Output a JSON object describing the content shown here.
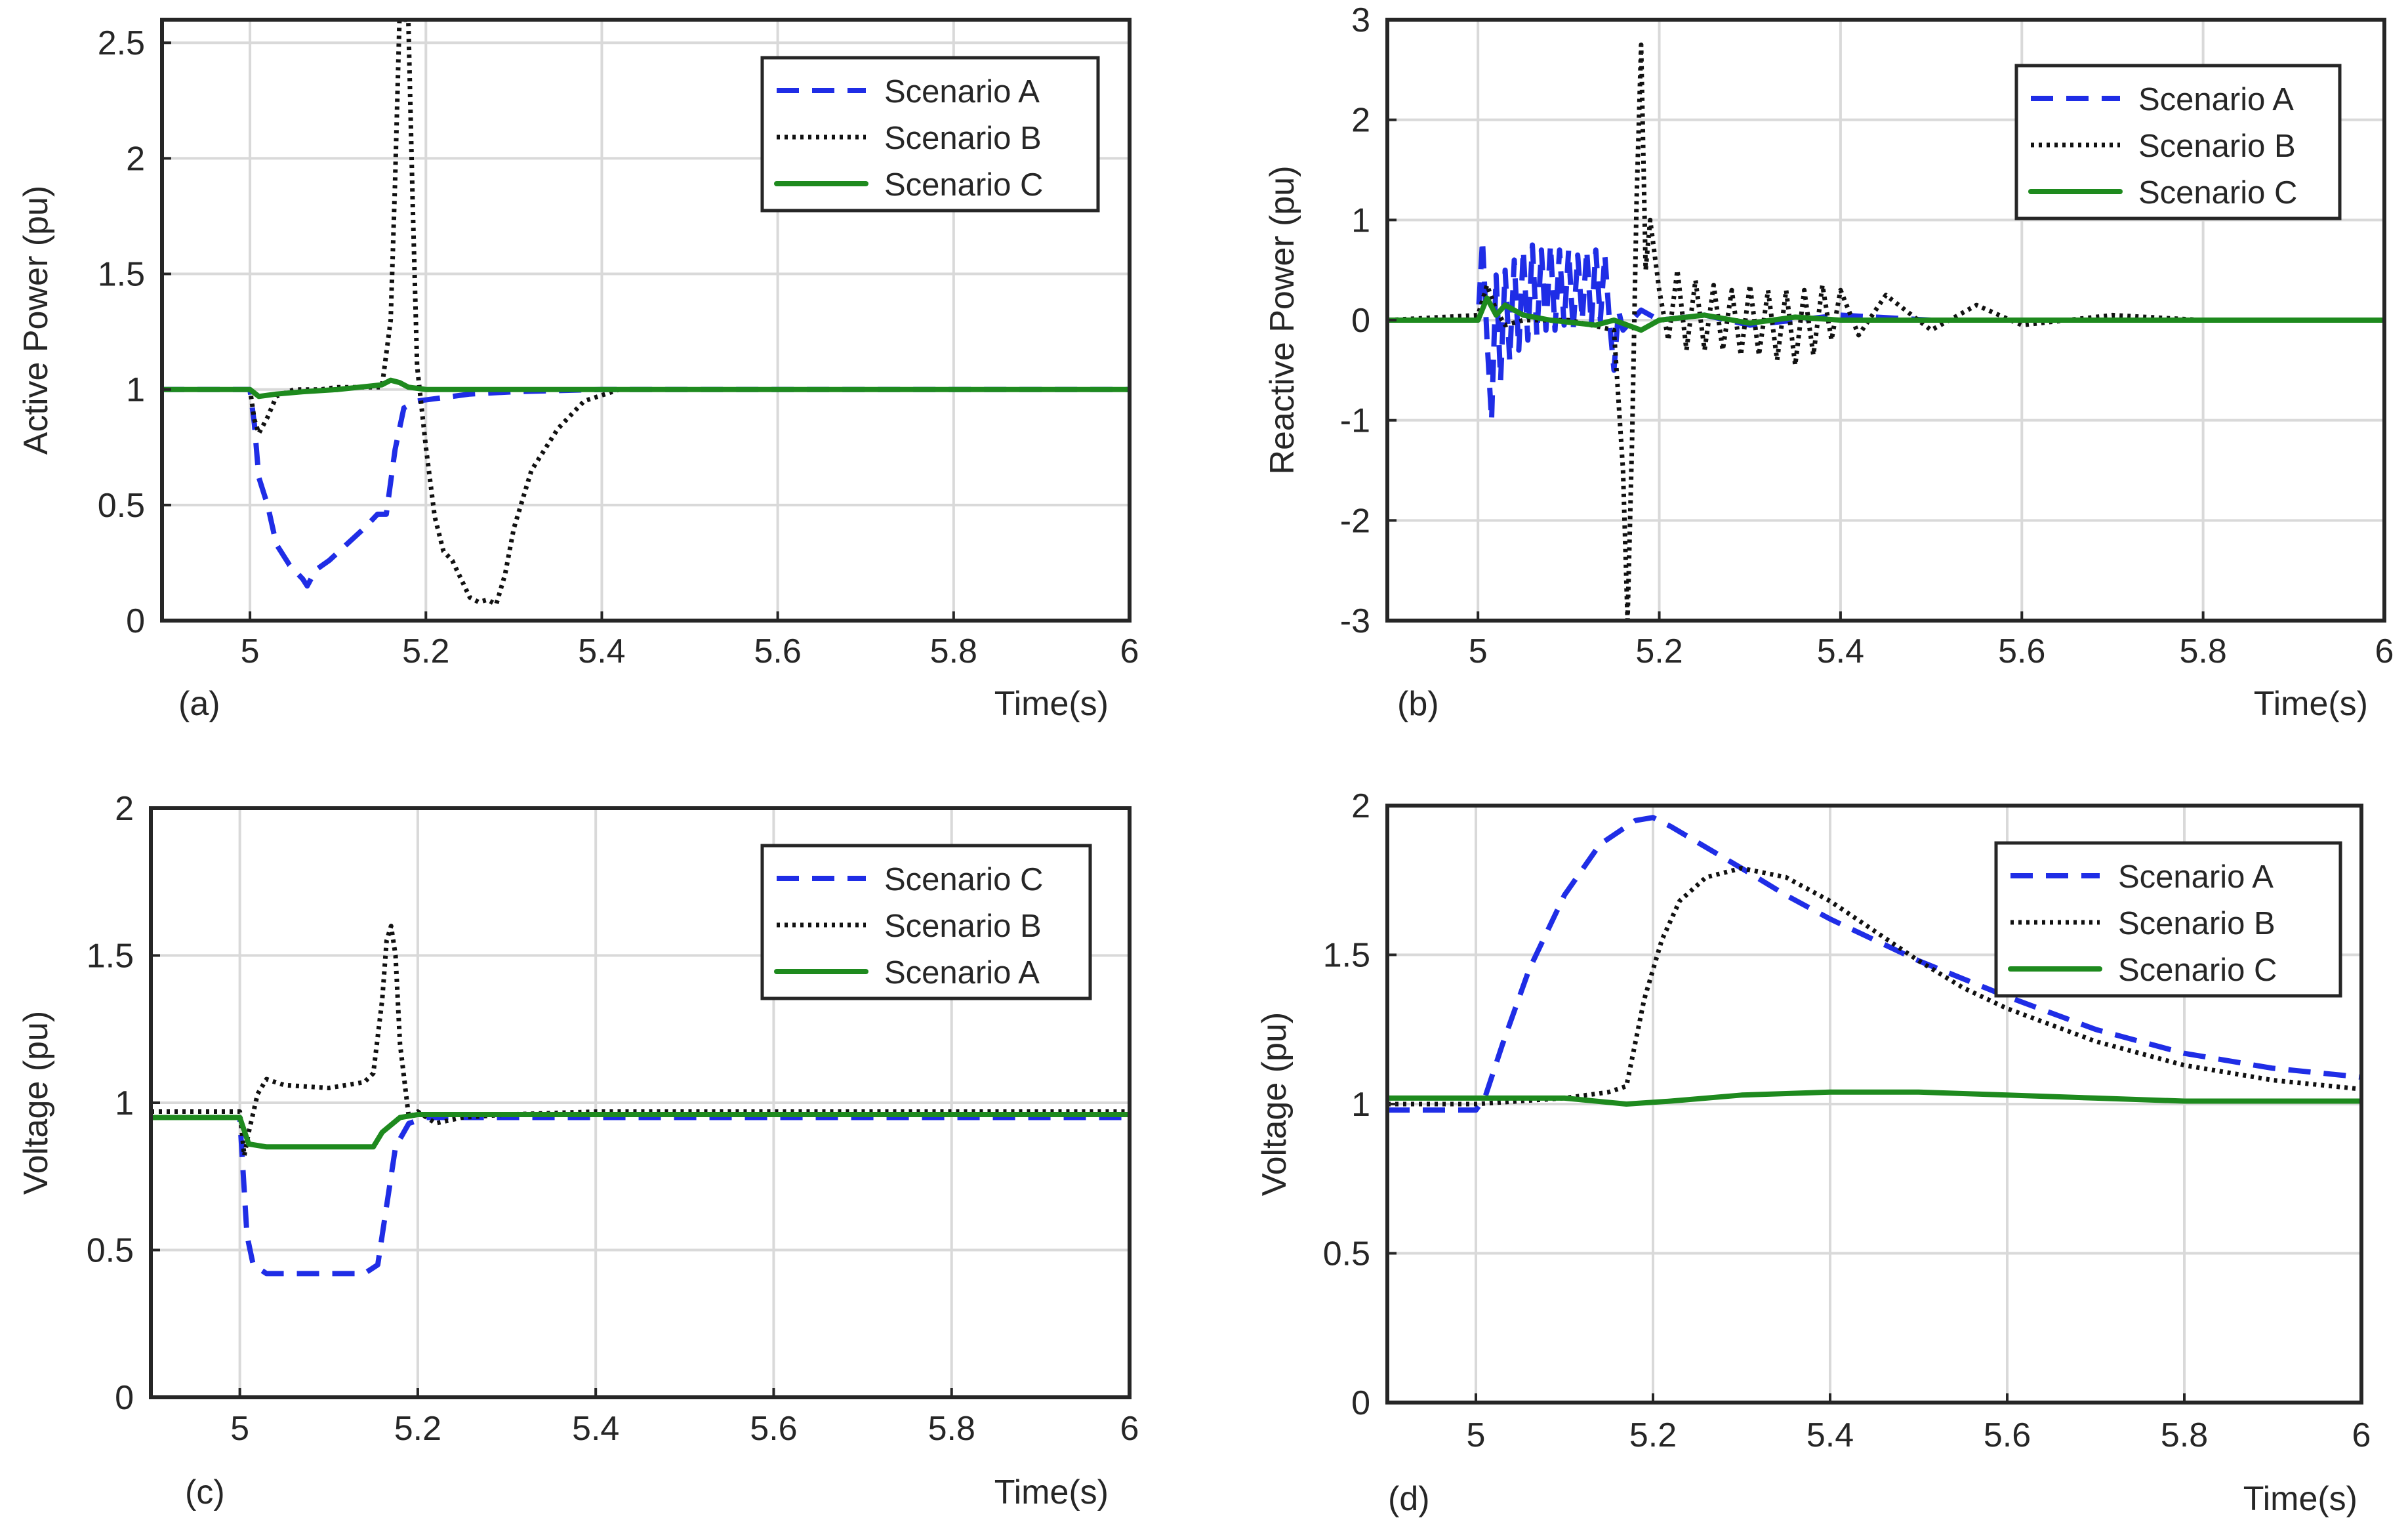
{
  "colors": {
    "scenario_dashed": "#1f2de6",
    "scenario_dotted": "#111111",
    "scenario_solid": "#1e8a1e",
    "grid": "#d9d9d9",
    "axes": "#262626"
  },
  "chart_data": [
    {
      "id": "a",
      "type": "line",
      "panel_label": "(a)",
      "xlabel": "Time(s)",
      "ylabel": "Active Power (pu)",
      "xlim": [
        4.9,
        6.0
      ],
      "ylim": [
        0,
        2.6
      ],
      "xticks": [
        5,
        5.2,
        5.4,
        5.6,
        5.8,
        6
      ],
      "yticks": [
        0,
        0.5,
        1,
        1.5,
        2,
        2.5
      ],
      "ytick_labels": [
        "0",
        "0.5",
        "1",
        "1.5",
        "2",
        "2.5"
      ],
      "xtick_labels": [
        "5",
        "5.2",
        "5.4",
        "5.6",
        "5.8",
        "6"
      ],
      "grid": true,
      "legend_position": "top-right",
      "series": [
        {
          "name": "Scenario A",
          "style": "dashed",
          "color": "#1f2de6",
          "x": [
            4.9,
            5.0,
            5.005,
            5.01,
            5.02,
            5.03,
            5.045,
            5.06,
            5.065,
            5.075,
            5.09,
            5.11,
            5.13,
            5.145,
            5.155,
            5.165,
            5.175,
            5.19,
            5.21,
            5.25,
            5.3,
            5.4,
            6.0
          ],
          "y": [
            1.0,
            1.0,
            0.85,
            0.62,
            0.5,
            0.33,
            0.24,
            0.18,
            0.15,
            0.22,
            0.26,
            0.33,
            0.4,
            0.46,
            0.46,
            0.74,
            0.92,
            0.95,
            0.96,
            0.98,
            0.99,
            1.0,
            1.0
          ]
        },
        {
          "name": "Scenario B",
          "style": "dotted",
          "color": "#111111",
          "x": [
            4.9,
            5.0,
            5.005,
            5.01,
            5.02,
            5.03,
            5.05,
            5.08,
            5.1,
            5.13,
            5.15,
            5.16,
            5.165,
            5.17,
            5.175,
            5.18,
            5.185,
            5.19,
            5.2,
            5.21,
            5.22,
            5.23,
            5.24,
            5.25,
            5.26,
            5.27,
            5.28,
            5.29,
            5.3,
            5.32,
            5.35,
            5.38,
            5.42,
            5.5,
            6.0
          ],
          "y": [
            1.0,
            1.0,
            0.87,
            0.81,
            0.88,
            0.97,
            1.0,
            1.0,
            1.01,
            1.01,
            1.01,
            1.3,
            1.9,
            2.6,
            2.6,
            2.6,
            1.8,
            1.1,
            0.75,
            0.45,
            0.3,
            0.26,
            0.18,
            0.1,
            0.08,
            0.09,
            0.07,
            0.2,
            0.4,
            0.65,
            0.83,
            0.95,
            1.0,
            1.0,
            1.0
          ]
        },
        {
          "name": "Scenario C",
          "style": "solid",
          "color": "#1e8a1e",
          "x": [
            4.9,
            5.0,
            5.01,
            5.03,
            5.06,
            5.1,
            5.15,
            5.16,
            5.17,
            5.18,
            5.2,
            5.3,
            6.0
          ],
          "y": [
            1.0,
            1.0,
            0.97,
            0.98,
            0.99,
            1.0,
            1.02,
            1.04,
            1.03,
            1.01,
            1.0,
            1.0,
            1.0
          ]
        }
      ]
    },
    {
      "id": "b",
      "type": "line",
      "panel_label": "(b)",
      "xlabel": "Time(s)",
      "ylabel": "Reactive Power (pu)",
      "xlim": [
        4.9,
        6.0
      ],
      "ylim": [
        -3,
        3
      ],
      "xticks": [
        5,
        5.2,
        5.4,
        5.6,
        5.8,
        6
      ],
      "yticks": [
        -3,
        -2,
        -1,
        0,
        1,
        2,
        3
      ],
      "ytick_labels": [
        "-3",
        "-2",
        "-1",
        "0",
        "1",
        "2",
        "3"
      ],
      "xtick_labels": [
        "5",
        "5.2",
        "5.4",
        "5.6",
        "5.8",
        "6"
      ],
      "grid": true,
      "legend_position": "top-right",
      "series": [
        {
          "name": "Scenario A",
          "style": "dashed",
          "color": "#1f2de6",
          "x": [
            4.9,
            5.0,
            5.005,
            5.01,
            5.015,
            5.02,
            5.025,
            5.03,
            5.035,
            5.04,
            5.045,
            5.05,
            5.055,
            5.06,
            5.065,
            5.07,
            5.075,
            5.08,
            5.085,
            5.09,
            5.095,
            5.1,
            5.105,
            5.11,
            5.115,
            5.12,
            5.125,
            5.13,
            5.135,
            5.14,
            5.145,
            5.15,
            5.155,
            5.16,
            5.18,
            5.2,
            5.25,
            5.3,
            5.4,
            5.5,
            6.0
          ],
          "y": [
            0.0,
            0.0,
            0.8,
            -0.2,
            -1.0,
            0.45,
            -0.6,
            0.5,
            -0.4,
            0.6,
            -0.3,
            0.7,
            -0.2,
            0.75,
            -0.15,
            0.7,
            -0.1,
            0.75,
            -0.1,
            0.7,
            -0.05,
            0.7,
            -0.1,
            0.65,
            0.0,
            0.7,
            -0.05,
            0.7,
            0.0,
            0.65,
            0.0,
            -0.5,
            0.1,
            -0.1,
            0.1,
            0.0,
            0.05,
            -0.05,
            0.05,
            0.0,
            0.0
          ]
        },
        {
          "name": "Scenario B",
          "style": "dotted",
          "color": "#111111",
          "x": [
            4.9,
            5.0,
            5.01,
            5.02,
            5.03,
            5.05,
            5.1,
            5.15,
            5.16,
            5.165,
            5.17,
            5.175,
            5.18,
            5.185,
            5.19,
            5.2,
            5.21,
            5.22,
            5.23,
            5.24,
            5.25,
            5.26,
            5.27,
            5.28,
            5.29,
            5.3,
            5.31,
            5.32,
            5.33,
            5.34,
            5.35,
            5.36,
            5.37,
            5.38,
            5.39,
            5.4,
            5.42,
            5.45,
            5.5,
            5.55,
            5.6,
            5.7,
            5.8,
            6.0
          ],
          "y": [
            0.0,
            0.05,
            0.35,
            0.1,
            -0.05,
            0.0,
            0.0,
            -0.1,
            -1.5,
            -3.0,
            -1.2,
            1.2,
            2.75,
            0.5,
            1.0,
            0.3,
            -0.2,
            0.5,
            -0.3,
            0.4,
            -0.3,
            0.35,
            -0.3,
            0.3,
            -0.35,
            0.35,
            -0.35,
            0.3,
            -0.4,
            0.3,
            -0.45,
            0.3,
            -0.35,
            0.35,
            -0.2,
            0.3,
            -0.15,
            0.25,
            -0.1,
            0.15,
            -0.05,
            0.05,
            0.0,
            0.0
          ]
        },
        {
          "name": "Scenario C",
          "style": "solid",
          "color": "#1e8a1e",
          "x": [
            4.9,
            5.0,
            5.01,
            5.02,
            5.03,
            5.05,
            5.08,
            5.1,
            5.13,
            5.15,
            5.18,
            5.2,
            5.25,
            5.3,
            5.35,
            5.4,
            5.5,
            6.0
          ],
          "y": [
            0.0,
            0.0,
            0.22,
            0.05,
            0.15,
            0.05,
            0.0,
            -0.02,
            -0.05,
            0.0,
            -0.1,
            0.0,
            0.05,
            -0.03,
            0.03,
            0.0,
            0.0,
            0.0
          ]
        }
      ]
    },
    {
      "id": "c",
      "type": "line",
      "panel_label": "(c)",
      "xlabel": "Time(s)",
      "ylabel": "Voltage (pu)",
      "xlim": [
        4.9,
        6.0
      ],
      "ylim": [
        0,
        2
      ],
      "xticks": [
        5,
        5.2,
        5.4,
        5.6,
        5.8,
        6
      ],
      "yticks": [
        0,
        0.5,
        1,
        1.5,
        2
      ],
      "ytick_labels": [
        "0",
        "0.5",
        "1",
        "1.5",
        "2"
      ],
      "xtick_labels": [
        "5",
        "5.2",
        "5.4",
        "5.6",
        "5.8",
        "6"
      ],
      "grid": true,
      "legend_position": "top-right",
      "series": [
        {
          "name": "Scenario C",
          "style": "dashed",
          "color": "#1f2de6",
          "x": [
            4.9,
            5.0,
            5.002,
            5.008,
            5.015,
            5.03,
            5.06,
            5.1,
            5.14,
            5.155,
            5.165,
            5.175,
            5.19,
            5.21,
            5.3,
            6.0
          ],
          "y": [
            0.95,
            0.95,
            0.85,
            0.55,
            0.45,
            0.42,
            0.42,
            0.42,
            0.42,
            0.45,
            0.65,
            0.85,
            0.93,
            0.95,
            0.95,
            0.95
          ]
        },
        {
          "name": "Scenario B",
          "style": "dotted",
          "color": "#111111",
          "x": [
            4.9,
            5.0,
            5.005,
            5.01,
            5.02,
            5.03,
            5.05,
            5.1,
            5.14,
            5.15,
            5.16,
            5.165,
            5.17,
            5.175,
            5.18,
            5.19,
            5.2,
            5.22,
            5.25,
            5.3,
            5.4,
            6.0
          ],
          "y": [
            0.97,
            0.97,
            0.82,
            0.9,
            1.03,
            1.08,
            1.06,
            1.05,
            1.07,
            1.1,
            1.35,
            1.55,
            1.6,
            1.5,
            1.2,
            0.95,
            0.97,
            0.93,
            0.95,
            0.96,
            0.97,
            0.97
          ]
        },
        {
          "name": "Scenario A",
          "style": "solid",
          "color": "#1e8a1e",
          "x": [
            4.9,
            5.0,
            5.01,
            5.03,
            5.1,
            5.15,
            5.16,
            5.18,
            5.2,
            6.0
          ],
          "y": [
            0.95,
            0.95,
            0.86,
            0.85,
            0.85,
            0.85,
            0.9,
            0.95,
            0.96,
            0.96
          ]
        }
      ]
    },
    {
      "id": "d",
      "type": "line",
      "panel_label": "(d)",
      "xlabel": "Time(s)",
      "ylabel": "Voltage (pu)",
      "xlim": [
        4.9,
        6.0
      ],
      "ylim": [
        0,
        2
      ],
      "xticks": [
        5,
        5.2,
        5.4,
        5.6,
        5.8,
        6
      ],
      "yticks": [
        0,
        0.5,
        1,
        1.5,
        2
      ],
      "ytick_labels": [
        "0",
        "0.5",
        "1",
        "1.5",
        "2"
      ],
      "xtick_labels": [
        "5",
        "5.2",
        "5.4",
        "5.6",
        "5.8",
        "6"
      ],
      "grid": true,
      "legend_position": "top-right",
      "series": [
        {
          "name": "Scenario A",
          "style": "dashed",
          "color": "#1f2de6",
          "x": [
            4.9,
            5.0,
            5.01,
            5.03,
            5.06,
            5.1,
            5.14,
            5.18,
            5.2,
            5.22,
            5.26,
            5.3,
            5.35,
            5.4,
            5.45,
            5.5,
            5.55,
            5.6,
            5.7,
            5.8,
            5.9,
            6.0
          ],
          "y": [
            0.98,
            0.98,
            1.02,
            1.2,
            1.45,
            1.7,
            1.87,
            1.95,
            1.96,
            1.93,
            1.86,
            1.79,
            1.7,
            1.62,
            1.55,
            1.48,
            1.42,
            1.36,
            1.25,
            1.17,
            1.12,
            1.09
          ]
        },
        {
          "name": "Scenario B",
          "style": "dotted",
          "color": "#111111",
          "x": [
            4.9,
            5.0,
            5.05,
            5.1,
            5.15,
            5.17,
            5.19,
            5.21,
            5.23,
            5.26,
            5.3,
            5.35,
            5.4,
            5.45,
            5.5,
            5.55,
            5.6,
            5.7,
            5.8,
            5.9,
            6.0
          ],
          "y": [
            1.0,
            1.0,
            1.01,
            1.02,
            1.04,
            1.06,
            1.35,
            1.55,
            1.68,
            1.76,
            1.79,
            1.76,
            1.68,
            1.58,
            1.48,
            1.39,
            1.32,
            1.21,
            1.13,
            1.08,
            1.05
          ]
        },
        {
          "name": "Scenario C",
          "style": "solid",
          "color": "#1e8a1e",
          "x": [
            4.9,
            5.0,
            5.1,
            5.17,
            5.22,
            5.3,
            5.4,
            5.5,
            5.6,
            5.7,
            5.8,
            6.0
          ],
          "y": [
            1.02,
            1.02,
            1.02,
            1.0,
            1.01,
            1.03,
            1.04,
            1.04,
            1.03,
            1.02,
            1.01,
            1.01
          ]
        }
      ]
    }
  ]
}
